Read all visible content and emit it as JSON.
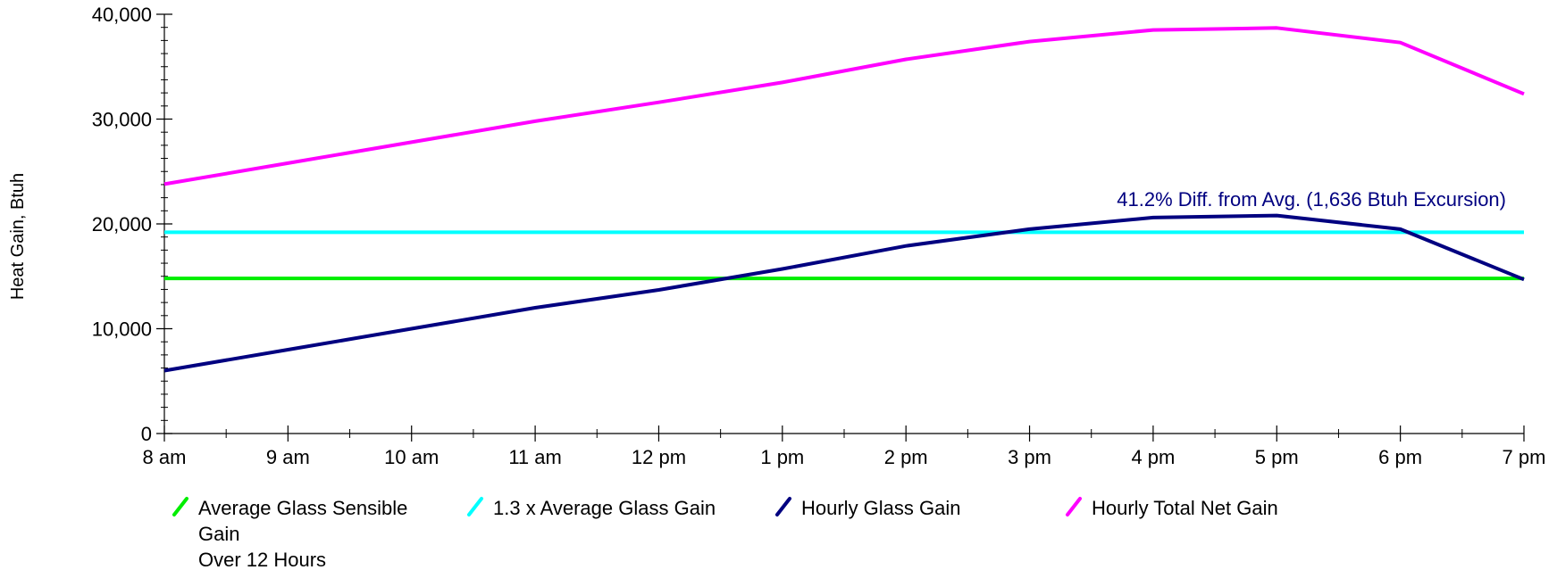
{
  "chart_data": {
    "type": "line",
    "title": "",
    "ylabel": "Heat Gain, Btuh",
    "xlabel": "",
    "categories": [
      "8 am",
      "9 am",
      "10 am",
      "11 am",
      "12 pm",
      "1 pm",
      "2 pm",
      "3 pm",
      "4 pm",
      "5 pm",
      "6 pm",
      "7 pm"
    ],
    "ylim": [
      0,
      40000
    ],
    "yticks": [
      0,
      10000,
      20000,
      30000,
      40000
    ],
    "ytick_labels": [
      "0",
      "10,000",
      "20,000",
      "30,000",
      "40,000"
    ],
    "grid": false,
    "legend_position": "bottom",
    "annotation": "41.2% Diff. from Avg. (1,636 Btuh Excursion)",
    "annotation_color": "#000080",
    "series": [
      {
        "name": "Average Glass Sensible Gain Over 12 Hours",
        "legend_lines": [
          "Average Glass Sensible",
          "Gain",
          "Over 12 Hours"
        ],
        "color": "#00ee00",
        "values": [
          14800,
          14800,
          14800,
          14800,
          14800,
          14800,
          14800,
          14800,
          14800,
          14800,
          14800,
          14800
        ]
      },
      {
        "name": "1.3 x Average Glass Gain",
        "legend_lines": [
          "1.3 x Average Glass Gain"
        ],
        "color": "#00ffff",
        "values": [
          19200,
          19200,
          19200,
          19200,
          19200,
          19200,
          19200,
          19200,
          19200,
          19200,
          19200,
          19200
        ]
      },
      {
        "name": "Hourly Glass Gain",
        "legend_lines": [
          "Hourly Glass Gain"
        ],
        "color": "#000080",
        "values": [
          6000,
          8000,
          10000,
          12000,
          13700,
          15700,
          17900,
          19500,
          20600,
          20800,
          19500,
          14700
        ]
      },
      {
        "name": "Hourly Total Net Gain",
        "legend_lines": [
          "Hourly Total Net Gain"
        ],
        "color": "#ff00ff",
        "values": [
          23800,
          25800,
          27800,
          29800,
          31600,
          33500,
          35700,
          37400,
          38500,
          38700,
          37300,
          32400
        ]
      }
    ]
  }
}
